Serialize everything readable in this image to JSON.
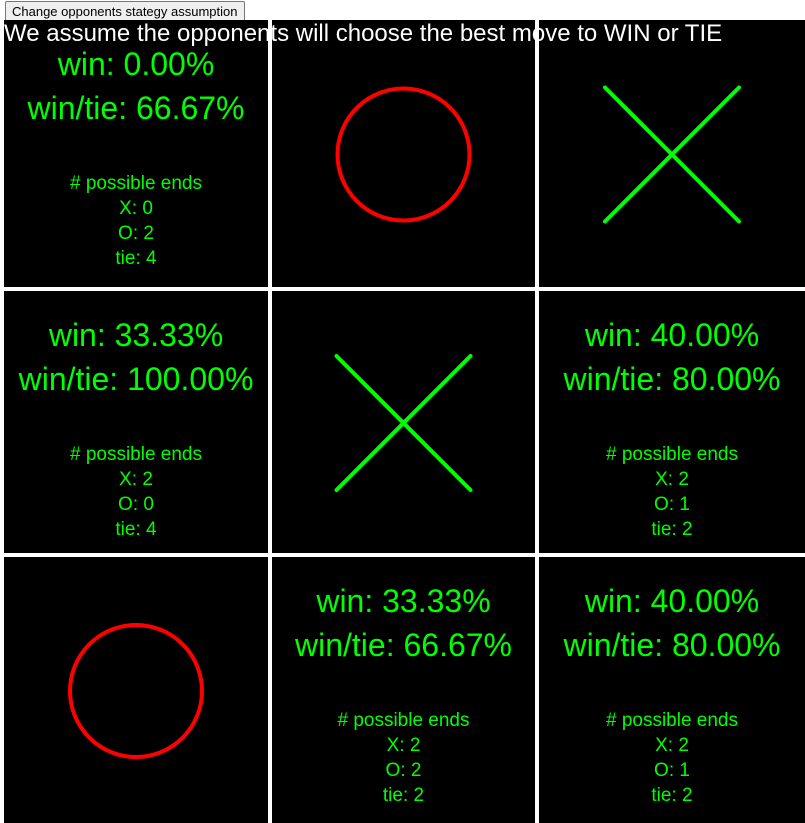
{
  "controls": {
    "strategy_button_label": "Change opponents stategy assumption"
  },
  "headline": "We assume the opponents will choose the best move to WIN or TIE",
  "colors": {
    "background": "#000000",
    "gridline": "#ffffff",
    "stats_text": "#00ff00",
    "x_mark": "#00ff00",
    "o_mark": "#ff0000"
  },
  "board": {
    "cells": [
      {
        "type": "stats",
        "win": "win: 0.00%",
        "win_tie": "win/tie: 66.67%",
        "ends_title": "# possible ends",
        "x_ends": "X: 0",
        "o_ends": "O: 2",
        "tie_ends": "tie: 4"
      },
      {
        "type": "mark",
        "mark": "O",
        "icon": "circle-icon"
      },
      {
        "type": "mark",
        "mark": "X",
        "icon": "cross-icon"
      },
      {
        "type": "stats",
        "win": "win: 33.33%",
        "win_tie": "win/tie: 100.00%",
        "ends_title": "# possible ends",
        "x_ends": "X: 2",
        "o_ends": "O: 0",
        "tie_ends": "tie: 4"
      },
      {
        "type": "mark",
        "mark": "X",
        "icon": "cross-icon"
      },
      {
        "type": "stats",
        "win": "win: 40.00%",
        "win_tie": "win/tie: 80.00%",
        "ends_title": "# possible ends",
        "x_ends": "X: 2",
        "o_ends": "O: 1",
        "tie_ends": "tie: 2"
      },
      {
        "type": "mark",
        "mark": "O",
        "icon": "circle-icon"
      },
      {
        "type": "stats",
        "win": "win: 33.33%",
        "win_tie": "win/tie: 66.67%",
        "ends_title": "# possible ends",
        "x_ends": "X: 2",
        "o_ends": "O: 2",
        "tie_ends": "tie: 2"
      },
      {
        "type": "stats",
        "win": "win: 40.00%",
        "win_tie": "win/tie: 80.00%",
        "ends_title": "# possible ends",
        "x_ends": "X: 2",
        "o_ends": "O: 1",
        "tie_ends": "tie: 2"
      }
    ]
  }
}
